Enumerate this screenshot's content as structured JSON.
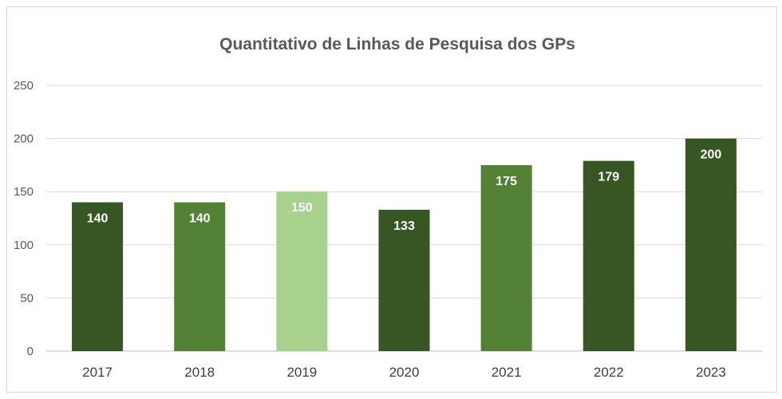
{
  "chart_data": {
    "type": "bar",
    "title": "Quantitativo de Linhas de Pesquisa dos GPs",
    "xlabel": "",
    "ylabel": "",
    "categories": [
      "2017",
      "2018",
      "2019",
      "2020",
      "2021",
      "2022",
      "2023"
    ],
    "values": [
      140,
      140,
      150,
      133,
      175,
      179,
      200
    ],
    "bar_colors": [
      "#375623",
      "#538135",
      "#a9d18e",
      "#375623",
      "#538135",
      "#375623",
      "#375623"
    ],
    "ylim": [
      0,
      250
    ],
    "yticks": [
      0,
      50,
      100,
      150,
      200,
      250
    ],
    "grid": true,
    "legend": "none",
    "data_labels": true
  }
}
